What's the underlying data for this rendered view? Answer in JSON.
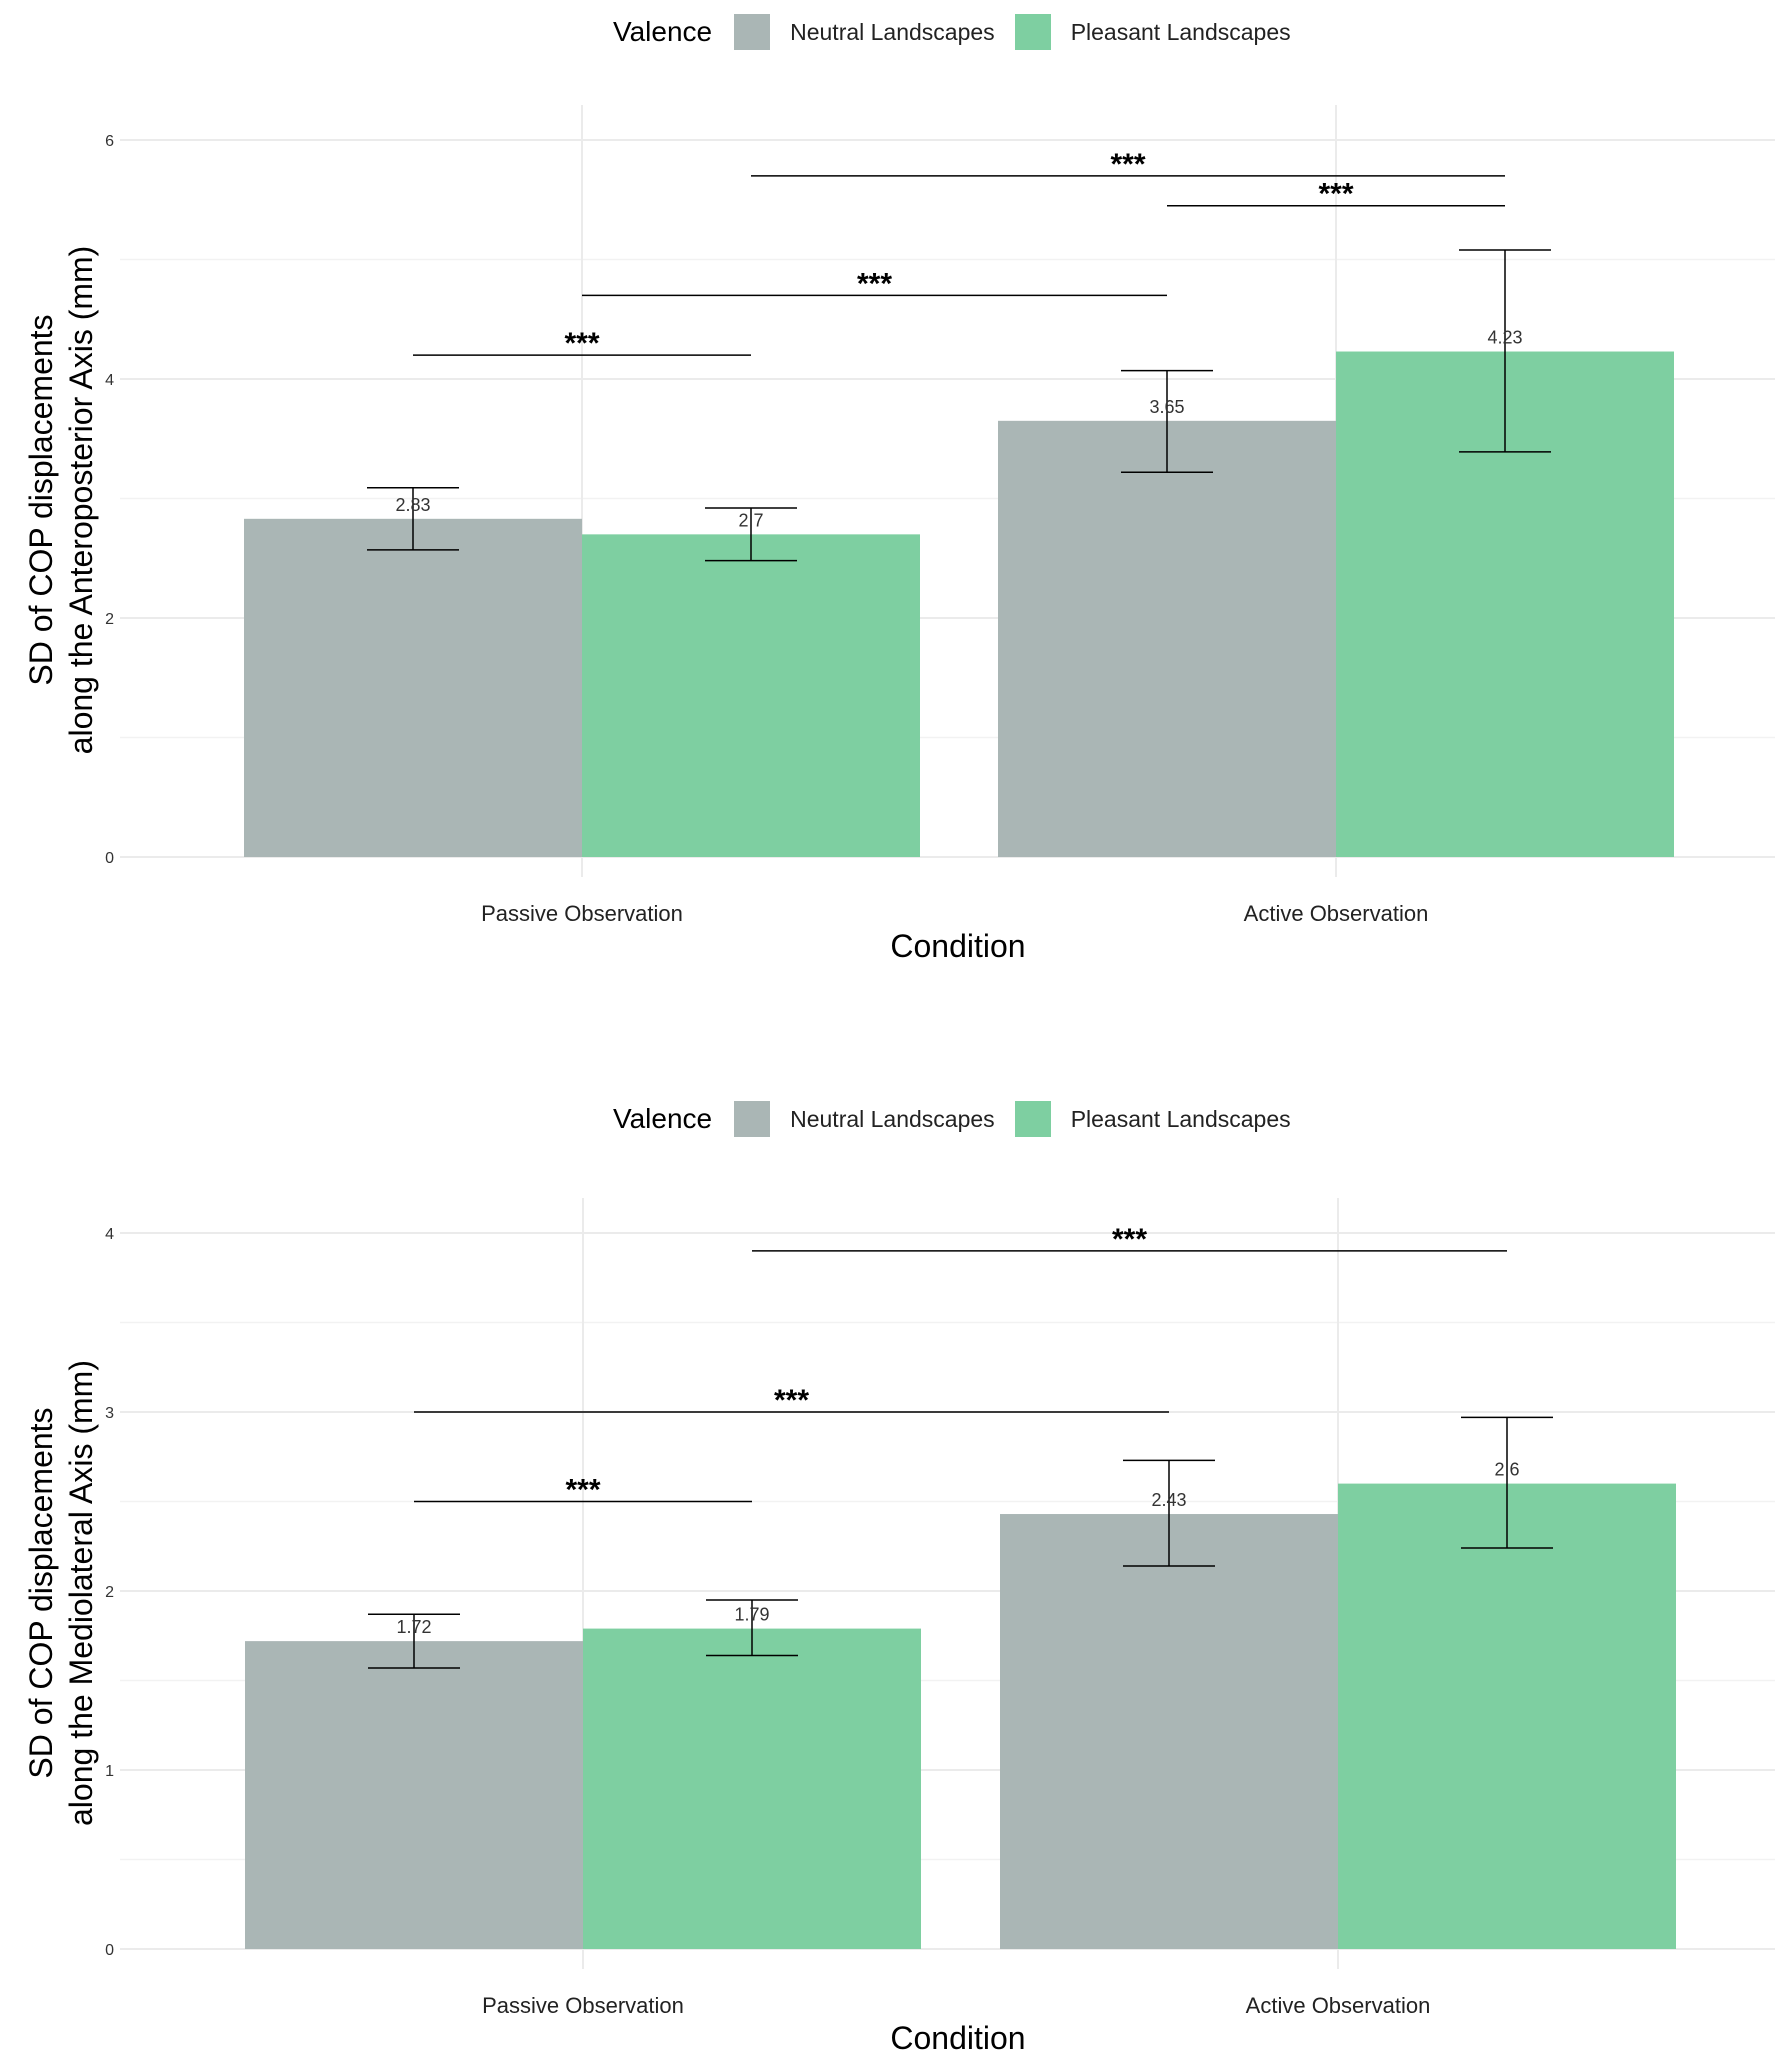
{
  "legend": {
    "title": "Valence",
    "entries": [
      {
        "label": "Neutral Landscapes",
        "color": "#aab6b5"
      },
      {
        "label": "Pleasant Landscapes",
        "color": "#7ecfa1"
      }
    ]
  },
  "chart_data": [
    {
      "type": "bar",
      "xlabel": "Condition",
      "ylabel_line1": "SD of COP displacements",
      "ylabel_line2": "along the Anteroposterior Axis (mm)",
      "categories": [
        "Passive Observation",
        "Active Observation"
      ],
      "ylim": [
        0,
        6
      ],
      "yticks": [
        0,
        2,
        4,
        6
      ],
      "series": [
        {
          "name": "Neutral Landscapes",
          "values": [
            2.83,
            3.65
          ],
          "labels": [
            "2.83",
            "3.65"
          ],
          "err_low": [
            2.57,
            3.22
          ],
          "err_high": [
            3.09,
            4.07
          ]
        },
        {
          "name": "Pleasant Landscapes",
          "values": [
            2.7,
            4.23
          ],
          "labels": [
            "2.7",
            "4.23"
          ],
          "err_low": [
            2.48,
            3.39
          ],
          "err_high": [
            2.92,
            5.08
          ]
        }
      ],
      "significance": [
        {
          "from": [
            0,
            0
          ],
          "to": [
            0,
            1
          ],
          "y": 4.2,
          "label": "***"
        },
        {
          "from": [
            0,
            0.5
          ],
          "to": [
            1,
            0
          ],
          "y": 4.7,
          "label": "***"
        },
        {
          "from": [
            0,
            1
          ],
          "to": [
            1,
            1
          ],
          "y": 5.7,
          "label": "***"
        },
        {
          "from": [
            1,
            0
          ],
          "to": [
            1,
            1
          ],
          "y": 5.45,
          "label": "***"
        }
      ]
    },
    {
      "type": "bar",
      "xlabel": "Condition",
      "ylabel_line1": "SD of COP displacements",
      "ylabel_line2": "along the Mediolateral Axis (mm)",
      "categories": [
        "Passive Observation",
        "Active Observation"
      ],
      "ylim": [
        0,
        4
      ],
      "yticks": [
        0,
        1,
        2,
        3,
        4
      ],
      "series": [
        {
          "name": "Neutral Landscapes",
          "values": [
            1.72,
            2.43
          ],
          "labels": [
            "1.72",
            "2.43"
          ],
          "err_low": [
            1.57,
            2.14
          ],
          "err_high": [
            1.87,
            2.73
          ]
        },
        {
          "name": "Pleasant Landscapes",
          "values": [
            1.79,
            2.6
          ],
          "labels": [
            "1.79",
            "2.6"
          ],
          "err_low": [
            1.64,
            2.24
          ],
          "err_high": [
            1.95,
            2.97
          ]
        }
      ],
      "significance": [
        {
          "from": [
            0,
            0
          ],
          "to": [
            0,
            1
          ],
          "y": 2.5,
          "label": "***"
        },
        {
          "from": [
            0,
            0
          ],
          "to": [
            1,
            0
          ],
          "y": 3.0,
          "label": "***"
        },
        {
          "from": [
            0,
            1
          ],
          "to": [
            1,
            1
          ],
          "y": 3.9,
          "label": "***"
        }
      ]
    }
  ]
}
